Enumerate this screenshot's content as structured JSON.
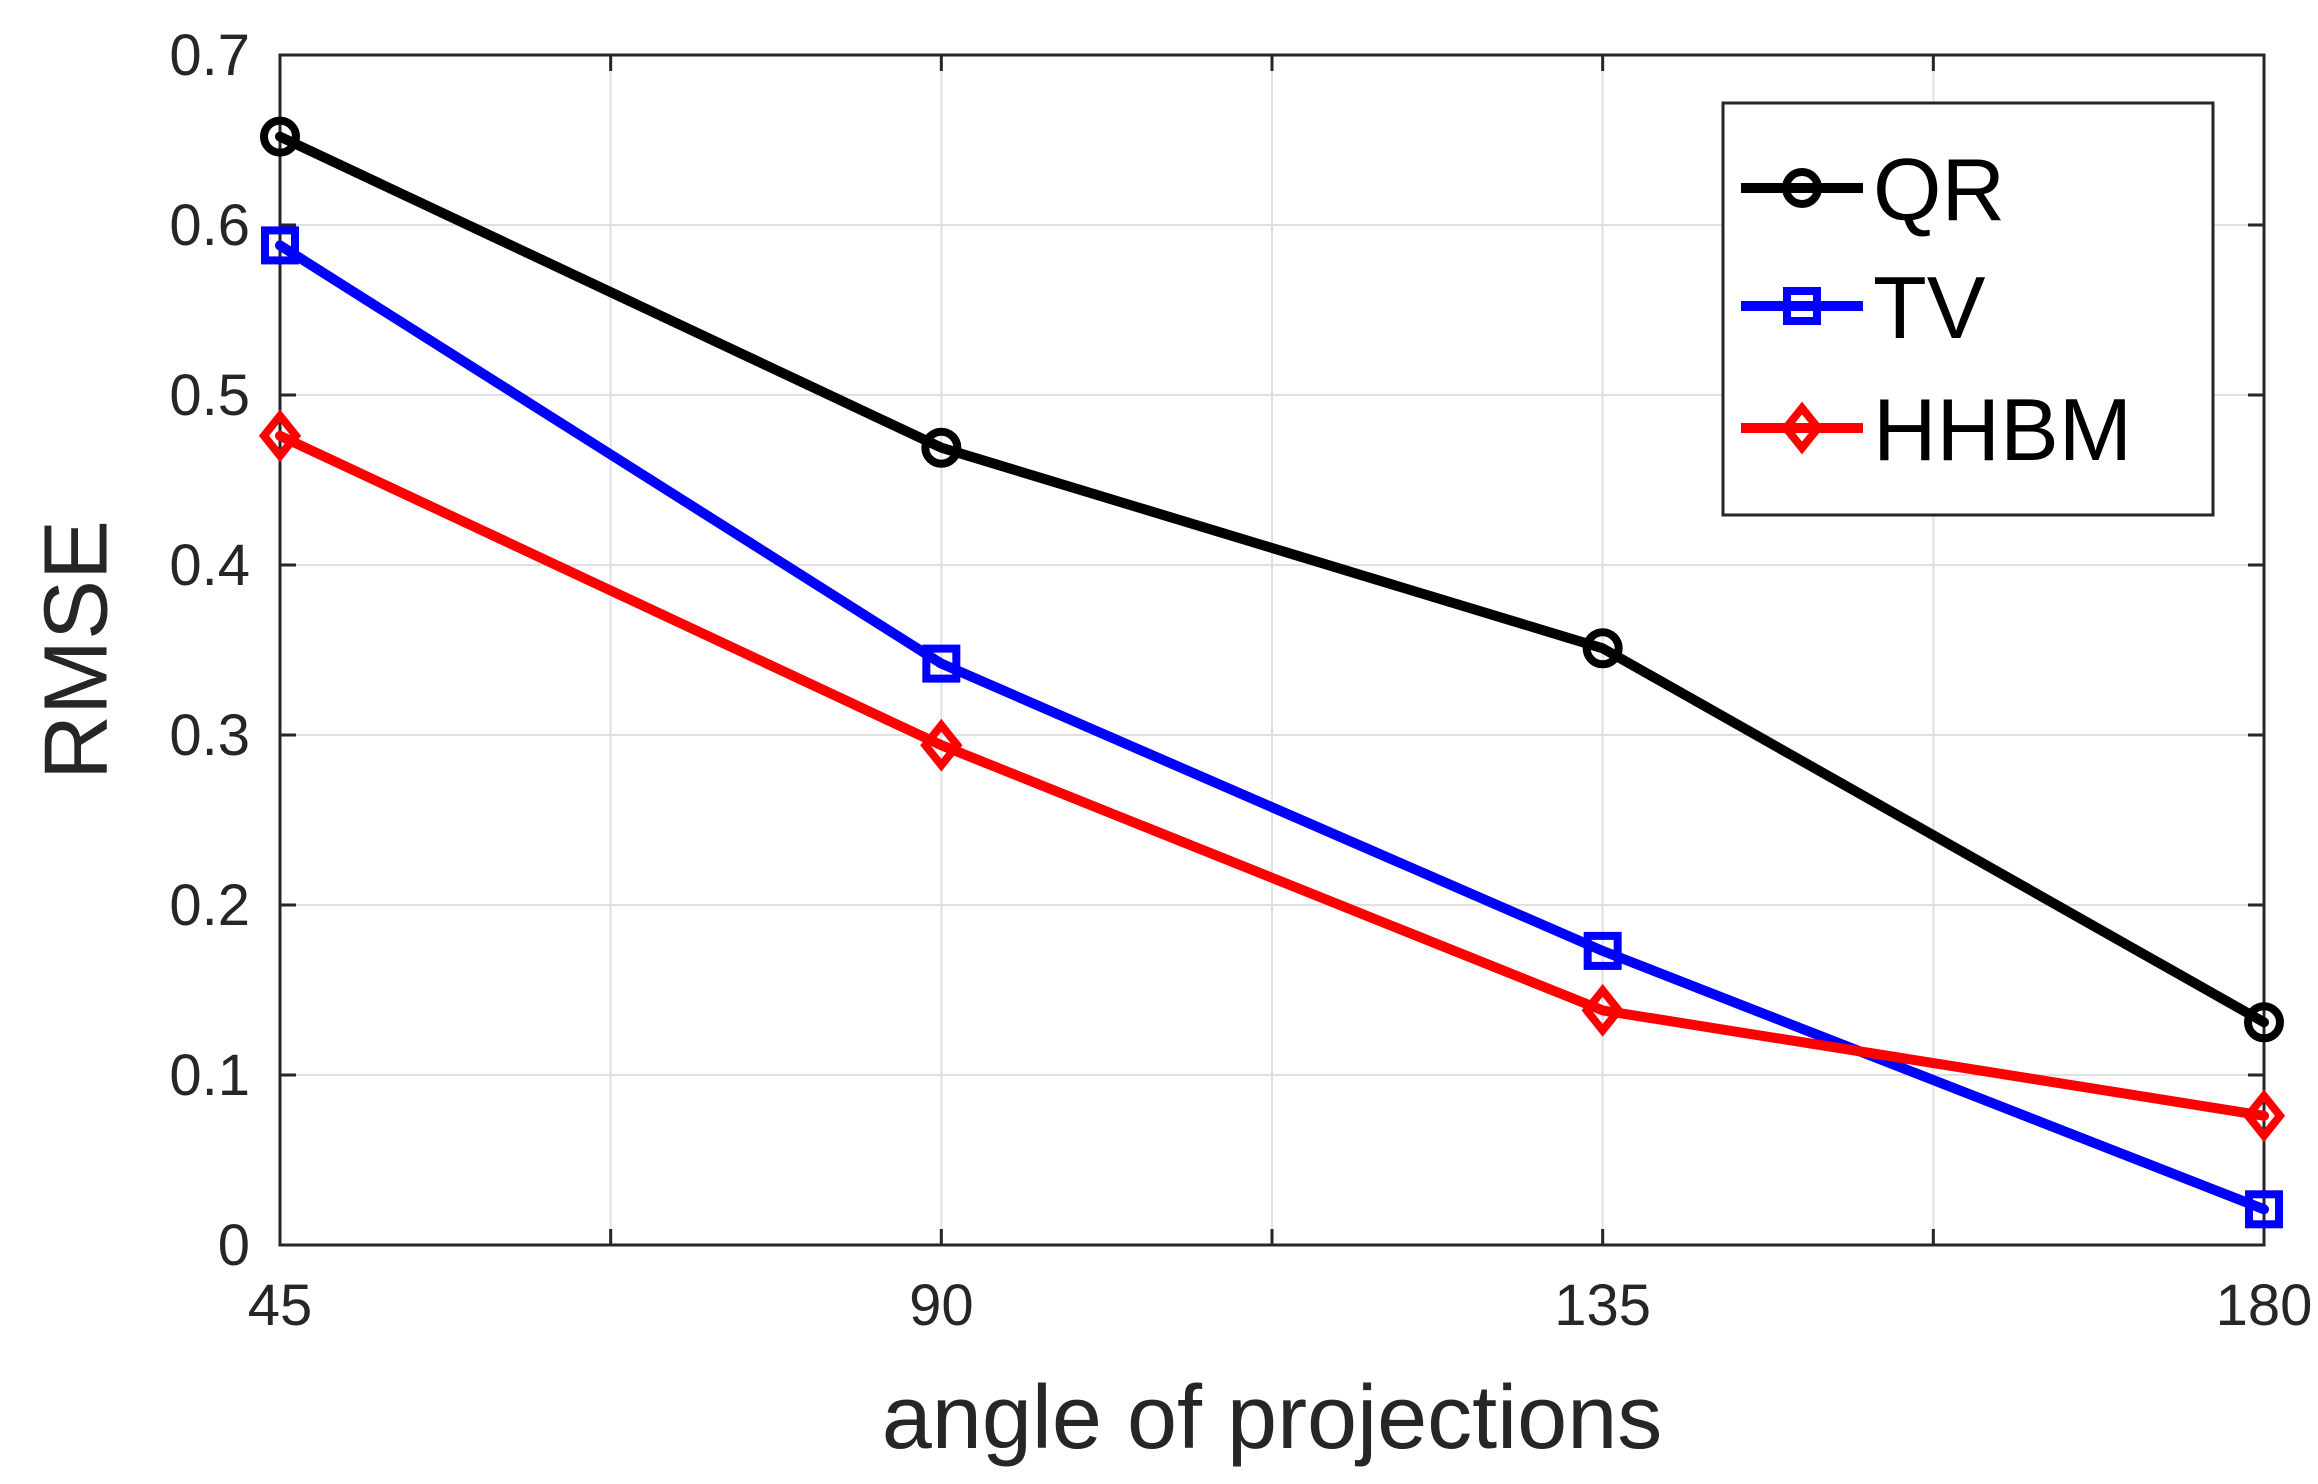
{
  "chart_data": {
    "type": "line",
    "title": "",
    "xlabel": "angle of projections",
    "ylabel": "RMSE",
    "x": [
      45,
      90,
      135,
      180
    ],
    "xlim": [
      45,
      180
    ],
    "ylim": [
      0,
      0.7
    ],
    "xticks": [
      45,
      90,
      135,
      180
    ],
    "xticks_minor": [
      67.5,
      112.5,
      157.5
    ],
    "xtick_labels": [
      "45",
      "90",
      "135",
      "180"
    ],
    "yticks": [
      0,
      0.1,
      0.2,
      0.3,
      0.4,
      0.5,
      0.6,
      0.7
    ],
    "ytick_labels": [
      "0",
      "0.1",
      "0.2",
      "0.3",
      "0.4",
      "0.5",
      "0.6",
      "0.7"
    ],
    "grid": true,
    "legend_position": "top-right",
    "series": [
      {
        "name": "QR",
        "marker": "circle",
        "color": "#000000",
        "values": [
          0.652,
          0.469,
          0.351,
          0.131
        ]
      },
      {
        "name": "TV",
        "marker": "square",
        "color": "#0000ff",
        "values": [
          0.588,
          0.342,
          0.173,
          0.021
        ]
      },
      {
        "name": "HHBM",
        "marker": "diamond",
        "color": "#ff0000",
        "values": [
          0.476,
          0.294,
          0.138,
          0.076
        ]
      }
    ]
  }
}
